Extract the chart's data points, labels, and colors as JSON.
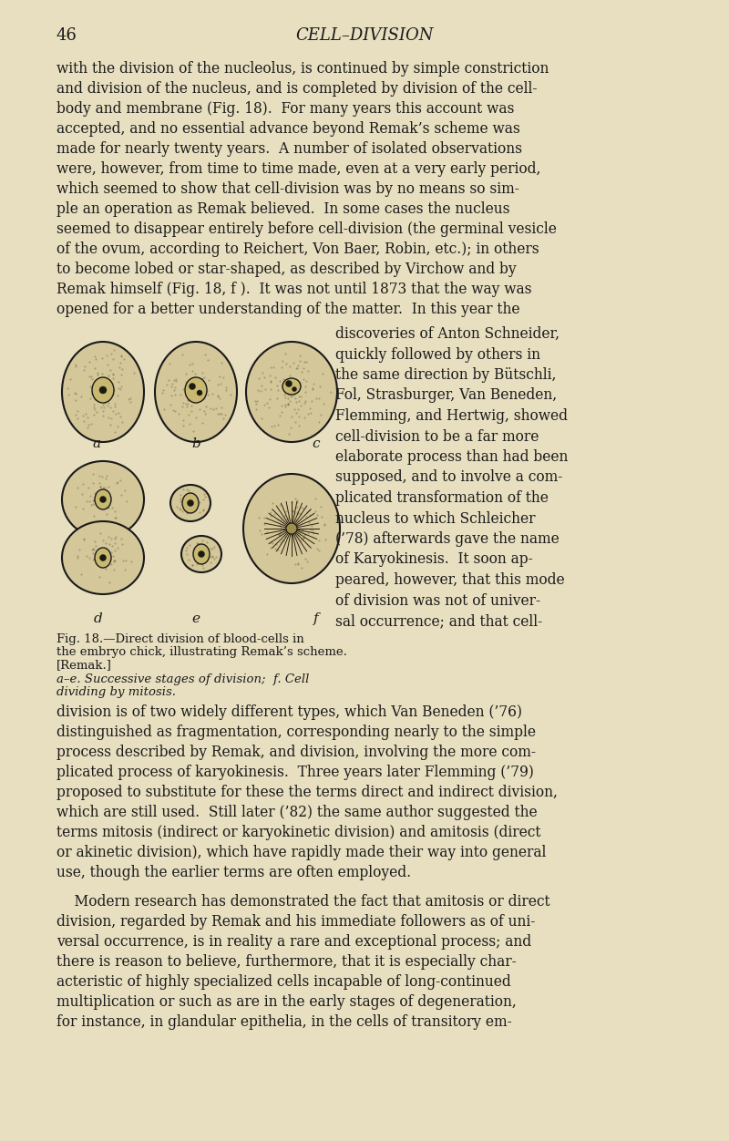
{
  "bg_color": "#e8dfc0",
  "page_number": "46",
  "header_title": "CELL–DIVISION",
  "text_color": "#1a1a1a",
  "body_text_1": "with the division of the nucleolus, is continued by simple constriction\nand division of the nucleus, and is completed by division of the cell-\nbody and membrane (Fig. 18).  For many years this account was\naccepted, and no essential advance beyond Remak’s scheme was\nmade for nearly twenty years.  A number of isolated observations\nwere, however, from time to time made, even at a very early period,\nwhich seemed to show that cell-division was by no means so sim-\nple an operation as Remak believed.  In some cases the nucleus\nseemed to disappear entirely before cell-division (the germinal vesicle\nof the ovum, according to Reichert, Von Baer, Robin, etc.); in others\nto become lobed or star-shaped, as described by Virchow and by\nRemak himself (Fig. 18, f ).  It was not until 1873 that the way was\nopened for a better understanding of the matter.  In this year the",
  "right_column_text": "discoveries of Anton Schneider,\nquickly followed by others in\nthe same direction by Bütschli,\nFol, Strasburger, Van Beneden,\nFlemming, and Hertwig, showed\ncell-division to be a far more\nelaborate process than had been\nsupposed, and to involve a com-\nplicated transformation of the\nnucleus to which Schleicher\n(’78) afterwards gave the name\nof Karyokinesis.  It soon ap-\npeared, however, that this mode\nof division was not of univer-\nsal occurrence; and that cell-",
  "body_text_2": "division is of two widely different types, which Van Beneden (’76)\ndistinguished as fragmentation, corresponding nearly to the simple\nprocess described by Remak, and division, involving the more com-\nplicated process of karyokinesis.  Three years later Flemming (’79)\nproposed to substitute for these the terms direct and indirect division,\nwhich are still used.  Still later (’82) the same author suggested the\nterms mitosis (indirect or karyokinetic division) and amitosis (direct\nor akinetic division), which have rapidly made their way into general\nuse, though the earlier terms are often employed.",
  "body_text_3": "    Modern research has demonstrated the fact that amitosis or direct\ndivision, regarded by Remak and his immediate followers as of uni-\nversal occurrence, is in reality a rare and exceptional process; and\nthere is reason to believe, furthermore, that it is especially char-\nacteristic of highly specialized cells incapable of long-continued\nmultiplication or such as are in the early stages of degeneration,\nfor instance, in glandular epithelia, in the cells of transitory em-",
  "caption_line1": "Fig. 18.—Direct division of blood-cells in",
  "caption_line2": "the embryo chick, illustrating Remak’s scheme.",
  "caption_line3": "[Remak.]",
  "caption_line4": "a–e. Successive stages of division;  f. Cell",
  "caption_line5": "dividing by mitosis."
}
